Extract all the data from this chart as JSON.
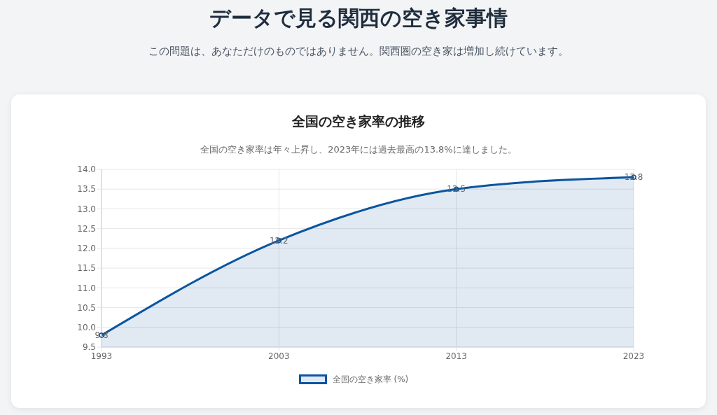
{
  "chart_data": {
    "type": "area",
    "title": "全国の空き家率の推移",
    "subtitle": "全国の空き家率は年々上昇し、2023年には過去最高の13.8%に達しました。",
    "annotations": [
      "データで見る関西の空き家事情",
      "この問題は、あなただけのものではありません。関西圏の空き家は増加し続けています。"
    ],
    "categories": [
      "1993",
      "2003",
      "2013",
      "2023"
    ],
    "series": [
      {
        "name": "全国の空き家率 (%)",
        "color": "#0b559f",
        "values": [
          9.8,
          12.2,
          13.5,
          13.8
        ]
      }
    ],
    "ylim": [
      9.5,
      14
    ],
    "yticks": [
      9.5,
      {
        "value": 10,
        "label": "10.0"
      },
      10.5,
      {
        "value": 11,
        "label": "11.0"
      },
      11.5,
      {
        "value": 12,
        "label": "12.0"
      },
      12.5,
      {
        "value": 13,
        "label": "13.0"
      },
      13.5,
      {
        "value": 14,
        "label": "14.0"
      }
    ],
    "grid": true,
    "legend": "bottom",
    "marker": "circle",
    "line_style": "solid",
    "data_labels": true
  }
}
